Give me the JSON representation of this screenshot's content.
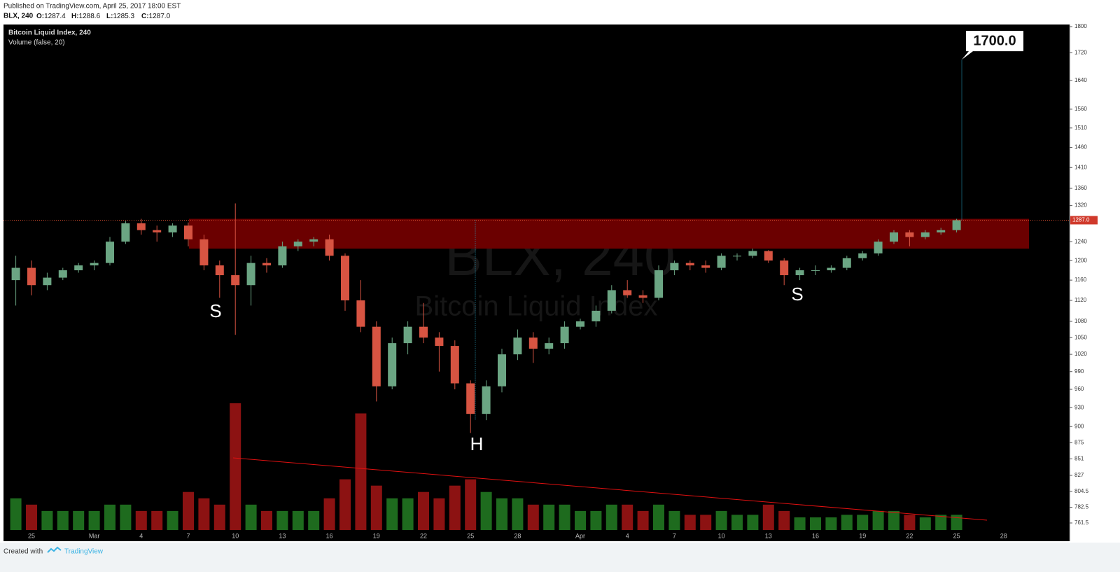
{
  "header": {
    "published": "Published on TradingView.com, April 25, 2017 18:00 EST",
    "symbol": "BLX, 240",
    "ohlc": [
      {
        "label": "O:",
        "value": "1287.4"
      },
      {
        "label": "H:",
        "value": "1288.6"
      },
      {
        "label": "L:",
        "value": "1285.3"
      },
      {
        "label": "C:",
        "value": "1287.0"
      }
    ]
  },
  "legend": {
    "main": "Bitcoin Liquid Index, 240",
    "volume": "Volume (false, 20)"
  },
  "watermark": {
    "symbol": "BLX, 240",
    "name": "Bitcoin Liquid Index"
  },
  "annotations": [
    "S",
    "H",
    "S"
  ],
  "footer": {
    "created": "Created with",
    "brand": "TradingView"
  },
  "chart_data": {
    "type": "candlestick",
    "log_scale": true,
    "grid": false,
    "categories": [
      null,
      "25",
      null,
      null,
      null,
      "Mar",
      null,
      null,
      "4",
      null,
      null,
      "7",
      null,
      null,
      "10",
      null,
      null,
      "13",
      null,
      null,
      "16",
      null,
      null,
      "19",
      null,
      null,
      "22",
      null,
      null,
      "25",
      null,
      null,
      "28",
      null,
      null,
      null,
      "Apr",
      null,
      null,
      "4",
      null,
      null,
      "7",
      null,
      null,
      "10",
      null,
      null,
      "13",
      null,
      null,
      "16",
      null,
      null,
      "19",
      null,
      null,
      "22",
      null,
      null,
      "25",
      null,
      null,
      "28"
    ],
    "open": [
      1160,
      1185,
      1150,
      1165,
      1180,
      1190,
      1195,
      1240,
      1280,
      1265,
      1260,
      1275,
      1245,
      1190,
      1170,
      1150,
      1195,
      1190,
      1230,
      1240,
      1245,
      1210,
      1120,
      1070,
      965,
      1040,
      1070,
      1050,
      1035,
      970,
      920,
      965,
      1020,
      1050,
      1030,
      1040,
      1070,
      1080,
      1100,
      1140,
      1130,
      1125,
      1180,
      1195,
      1190,
      1185,
      1210,
      1210,
      1220,
      1200,
      1170,
      1180,
      1180,
      1185,
      1205,
      1215,
      1240,
      1260,
      1250,
      1260,
      1265,
      null,
      null,
      null
    ],
    "high": [
      1210,
      1200,
      1175,
      1185,
      1195,
      1200,
      1250,
      1285,
      1290,
      1275,
      1280,
      1282,
      1255,
      1200,
      1325,
      1210,
      1205,
      1240,
      1245,
      1250,
      1255,
      1215,
      1160,
      1080,
      1050,
      1080,
      1115,
      1060,
      1045,
      975,
      975,
      1030,
      1065,
      1060,
      1050,
      1080,
      1085,
      1110,
      1150,
      1160,
      1140,
      1190,
      1200,
      1200,
      1200,
      1215,
      1215,
      1225,
      1222,
      1205,
      1185,
      1190,
      1190,
      1210,
      1220,
      1245,
      1265,
      1265,
      1265,
      1270,
      1290,
      null,
      null,
      null
    ],
    "low": [
      1110,
      1130,
      1140,
      1160,
      1175,
      1180,
      1190,
      1235,
      1255,
      1240,
      1250,
      1230,
      1180,
      1125,
      1055,
      1110,
      1175,
      1185,
      1220,
      1230,
      1200,
      1100,
      1060,
      940,
      960,
      1020,
      1040,
      990,
      960,
      890,
      910,
      955,
      1010,
      1005,
      1020,
      1030,
      1065,
      1070,
      1095,
      1125,
      1115,
      1120,
      1170,
      1180,
      1175,
      1180,
      1200,
      1205,
      1195,
      1150,
      1160,
      1170,
      1175,
      1180,
      1200,
      1210,
      1235,
      1230,
      1245,
      1255,
      1260,
      null,
      null,
      null
    ],
    "close": [
      1185,
      1150,
      1165,
      1180,
      1190,
      1195,
      1240,
      1280,
      1265,
      1260,
      1275,
      1245,
      1190,
      1170,
      1150,
      1195,
      1190,
      1230,
      1240,
      1245,
      1210,
      1120,
      1070,
      965,
      1040,
      1070,
      1050,
      1035,
      970,
      920,
      965,
      1020,
      1050,
      1030,
      1040,
      1070,
      1080,
      1100,
      1140,
      1130,
      1125,
      1180,
      1195,
      1190,
      1185,
      1210,
      1210,
      1220,
      1200,
      1170,
      1180,
      1180,
      1185,
      1205,
      1215,
      1240,
      1260,
      1250,
      1260,
      1265,
      1287,
      null,
      null,
      null
    ],
    "volume": [
      25,
      20,
      15,
      15,
      15,
      15,
      20,
      20,
      15,
      15,
      15,
      30,
      25,
      20,
      100,
      20,
      15,
      15,
      15,
      15,
      25,
      40,
      92,
      35,
      25,
      25,
      30,
      25,
      35,
      40,
      30,
      25,
      25,
      20,
      20,
      20,
      15,
      15,
      20,
      20,
      15,
      20,
      15,
      12,
      12,
      15,
      12,
      12,
      20,
      15,
      10,
      10,
      10,
      12,
      12,
      15,
      15,
      12,
      10,
      12,
      12,
      null,
      null,
      null
    ],
    "volume_ylim": [
      0,
      100
    ],
    "up_color": "#6ba583",
    "down_color": "#d75442",
    "volume_up_color": "#1e6b1e",
    "volume_down_color": "#8c1212",
    "ylim": [
      752.3,
      1806.6
    ],
    "yticks": [
      1800,
      1720,
      1640,
      1560,
      1510,
      1460,
      1410,
      1360,
      1320,
      1240,
      1200,
      1160,
      1120,
      1080,
      1050,
      1020,
      990,
      960,
      930,
      900,
      875,
      851,
      827,
      804.5,
      782.5,
      761.5
    ],
    "last_price": {
      "value": 1287,
      "label": "1287.0"
    },
    "resistance_zone": [
      1225,
      1290
    ],
    "zone_color": "#6b0000",
    "target": {
      "value": 1700,
      "label": "1700.0"
    }
  }
}
